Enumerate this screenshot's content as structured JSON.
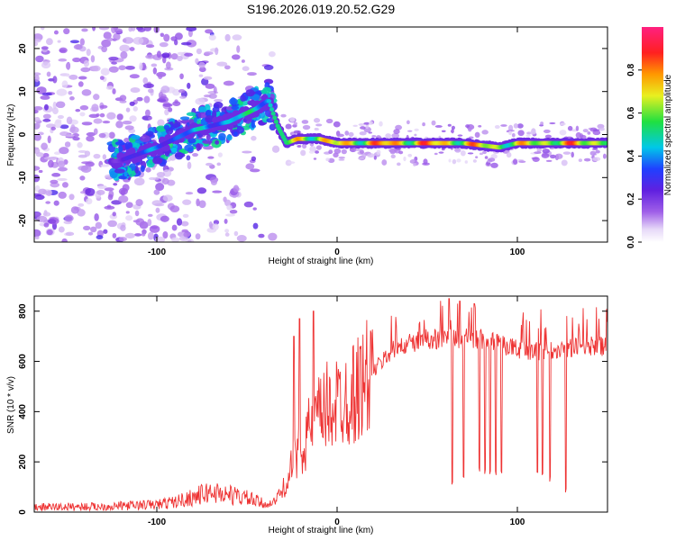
{
  "title": "S196.2026.019.20.52.G29",
  "chart_data": [
    {
      "type": "heatmap",
      "panel": "spectrogram",
      "xlabel": "Height of straight line (km)",
      "ylabel": "Frequency (Hz)",
      "xlim": [
        -168,
        150
      ],
      "ylim": [
        -25,
        25
      ],
      "xticks": [
        -100,
        0,
        100
      ],
      "yticks": [
        -20,
        -10,
        0,
        10,
        20
      ],
      "colorbar": {
        "label": "Normalized spectral amplitude",
        "range": [
          0,
          1
        ],
        "ticks": [
          0.0,
          0.2,
          0.4,
          0.6,
          0.8
        ],
        "colormap": "rainbow (white-violet-blue-cyan-green-yellow-orange-red-magenta)"
      },
      "ridge": {
        "description": "dominant frequency track",
        "x": [
          -168,
          -140,
          -120,
          -100,
          -80,
          -60,
          -45,
          -38,
          -33,
          -28,
          -22,
          -10,
          0,
          20,
          50,
          70,
          90,
          100,
          120,
          150
        ],
        "y": [
          -6,
          -7,
          -6,
          -3,
          1,
          3,
          6,
          8,
          2,
          -2,
          -1,
          -1,
          -2,
          -2,
          -2,
          -2,
          -3,
          -2,
          -2,
          -2
        ],
        "amplitude": [
          0.2,
          0.25,
          0.35,
          0.45,
          0.5,
          0.55,
          0.6,
          0.7,
          0.6,
          0.7,
          0.85,
          0.9,
          0.85,
          0.95,
          0.95,
          0.9,
          0.85,
          0.8,
          0.9,
          0.9
        ]
      }
    },
    {
      "type": "line",
      "panel": "snr",
      "xlabel": "Height of straight line (km)",
      "ylabel": "SNR (10 * v/v)",
      "xlim": [
        -168,
        150
      ],
      "ylim": [
        0,
        860
      ],
      "xticks": [
        -100,
        0,
        100
      ],
      "yticks": [
        0,
        200,
        400,
        600,
        800
      ],
      "series": [
        {
          "name": "SNR",
          "color": "#ee3333",
          "envelope_x": [
            -168,
            -130,
            -100,
            -90,
            -80,
            -70,
            -60,
            -50,
            -40,
            -35,
            -30,
            -25,
            -20,
            -15,
            -10,
            -5,
            0,
            10,
            20,
            30,
            40,
            50,
            60,
            80,
            100,
            110,
            120,
            140,
            150
          ],
          "envelope_y": [
            20,
            22,
            30,
            40,
            60,
            80,
            70,
            55,
            30,
            40,
            90,
            180,
            260,
            330,
            380,
            420,
            440,
            480,
            560,
            640,
            670,
            690,
            690,
            690,
            650,
            640,
            650,
            660,
            660
          ],
          "dropouts": [
            {
              "x": 64,
              "min": 100
            },
            {
              "x": 70,
              "min": 130
            },
            {
              "x": 79,
              "min": 150
            },
            {
              "x": 82,
              "min": 150
            },
            {
              "x": 85,
              "min": 140
            },
            {
              "x": 88,
              "min": 145
            },
            {
              "x": 91,
              "min": 150
            },
            {
              "x": 111,
              "min": 130
            },
            {
              "x": 114,
              "min": 140
            },
            {
              "x": 118,
              "min": 120
            },
            {
              "x": 127,
              "min": 70
            }
          ],
          "spikes": [
            {
              "x": -24,
              "max": 700
            },
            {
              "x": -21,
              "max": 770
            },
            {
              "x": -13,
              "max": 800
            },
            {
              "x": 62,
              "max": 850
            },
            {
              "x": 68,
              "max": 840
            },
            {
              "x": 76,
              "max": 830
            }
          ]
        }
      ]
    }
  ]
}
